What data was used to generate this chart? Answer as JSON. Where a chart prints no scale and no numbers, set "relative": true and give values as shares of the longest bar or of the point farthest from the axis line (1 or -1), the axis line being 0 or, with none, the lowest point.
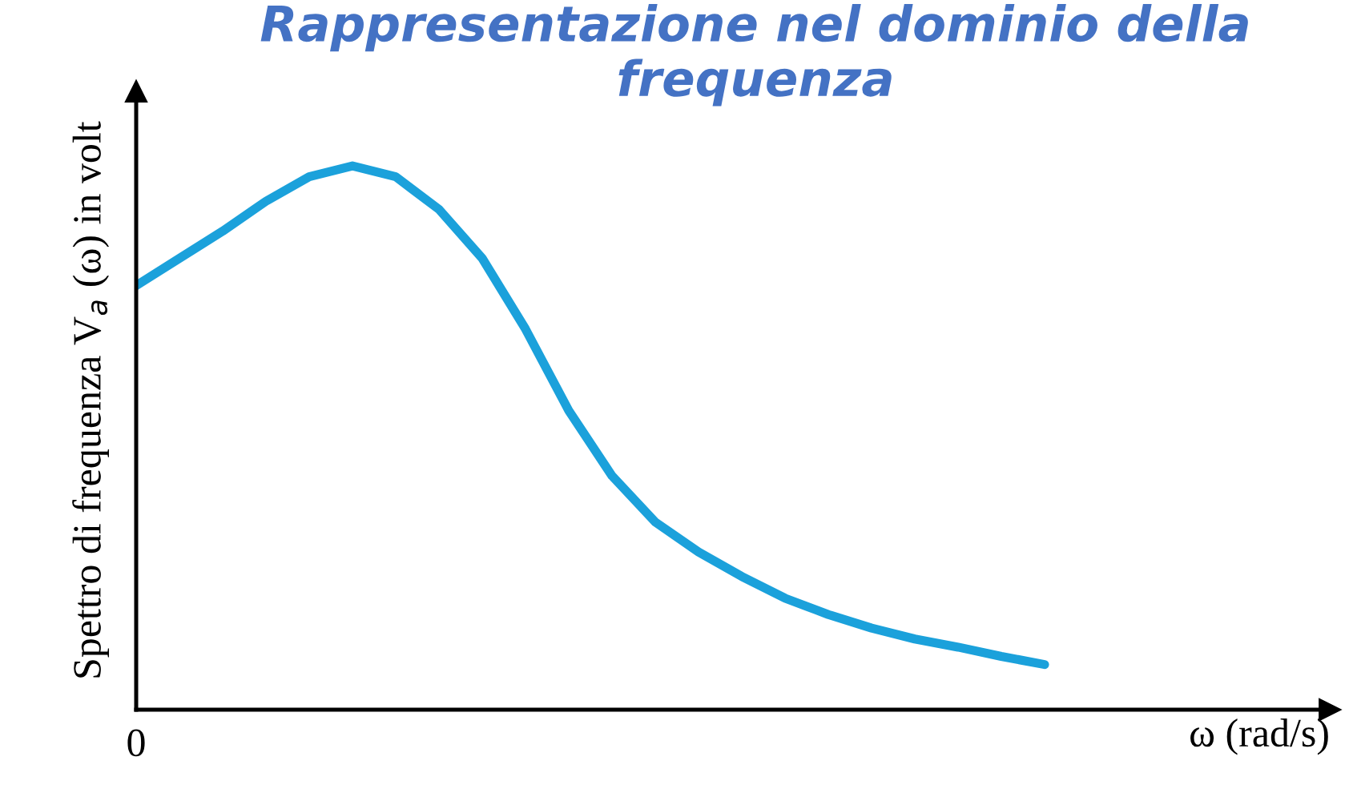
{
  "chart_data": {
    "type": "line",
    "title": "Rappresentazione nel dominio della frequenza",
    "xlabel": "ω (rad/s)",
    "ylabel": "Spettro di frequenza V$_{a}$ (ω) in volt",
    "annotations": [
      "0"
    ],
    "relative": true,
    "categories": [
      null,
      null,
      null,
      null,
      null,
      null,
      null,
      null,
      null,
      null,
      null,
      null,
      null,
      null,
      null,
      null,
      null,
      null,
      null,
      null,
      null,
      null
    ],
    "series": [
      {
        "color": "#1ba1db",
        "values": [
          0.78,
          0.83,
          0.88,
          0.935,
          0.98,
          1.0,
          0.98,
          0.92,
          0.83,
          0.7,
          0.55,
          0.43,
          0.345,
          0.29,
          0.245,
          0.205,
          0.175,
          0.15,
          0.13,
          0.115,
          0.098,
          0.083
        ]
      }
    ]
  }
}
